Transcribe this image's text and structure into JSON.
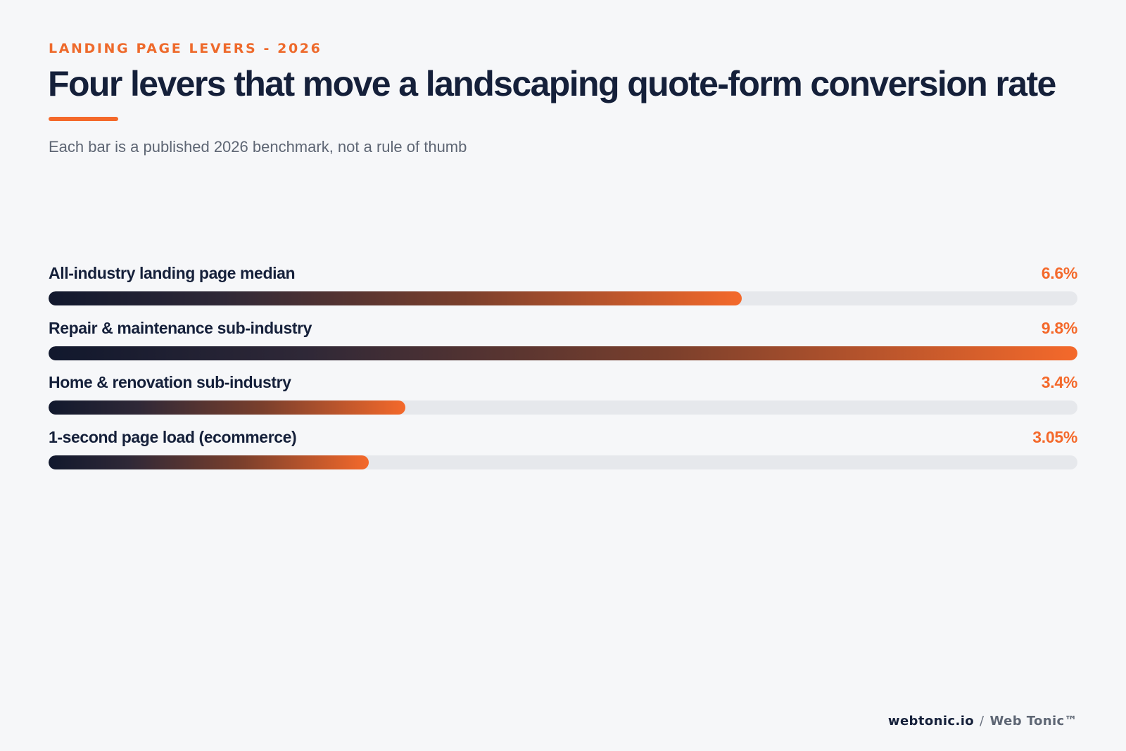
{
  "eyebrow": "LANDING PAGE LEVERS - 2026",
  "title": "Four levers that move a landscaping quote-form conversion rate",
  "subtitle": "Each bar is a published 2026 benchmark, not a rule of thumb",
  "colors": {
    "accent": "#f4692b",
    "navy": "#11182d",
    "track": "#e6e8ec",
    "background": "#f6f7f9"
  },
  "chart_data": {
    "type": "bar",
    "orientation": "horizontal",
    "categories": [
      "All-industry landing page median",
      "Repair & maintenance sub-industry",
      "Home & renovation sub-industry",
      "1-second page load (ecommerce)"
    ],
    "values": [
      6.6,
      9.8,
      3.4,
      3.05
    ],
    "value_labels": [
      "6.6%",
      "9.8%",
      "3.4%",
      "3.05%"
    ],
    "unit": "%",
    "xlim": [
      0,
      9.8
    ],
    "grid": false,
    "legend": "none"
  },
  "footer": {
    "site": "webtonic.io",
    "separator": "/",
    "brand": "Web Tonic™"
  }
}
